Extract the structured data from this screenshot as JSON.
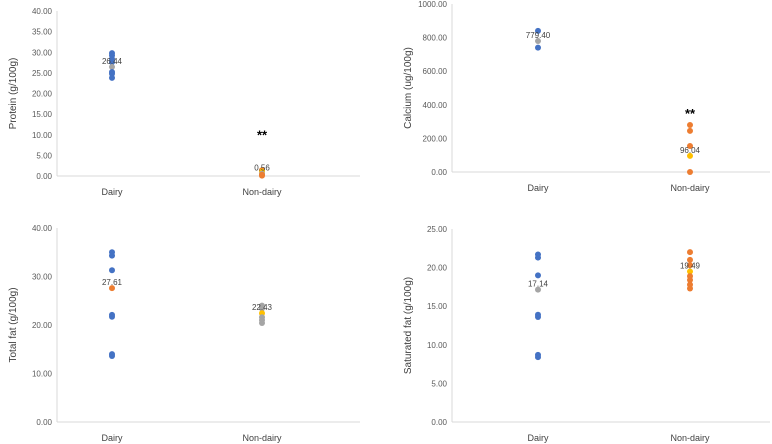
{
  "chart_data": [
    {
      "type": "scatter",
      "ylabel": "Protein (g/100g)",
      "categories": [
        "Dairy",
        "Non-dairy"
      ],
      "yticks": [
        "0.00",
        "5.00",
        "10.00",
        "15.00",
        "20.00",
        "25.00",
        "30.00",
        "35.00",
        "40.00"
      ],
      "ylim": [
        0,
        40
      ],
      "grid": false,
      "series": [
        {
          "category": "Dairy",
          "points": [
            {
              "y": 29.8,
              "color": "#4472c4"
            },
            {
              "y": 29.2,
              "color": "#4472c4"
            },
            {
              "y": 28.4,
              "color": "#4472c4"
            },
            {
              "y": 27.6,
              "color": "#4472c4"
            },
            {
              "y": 26.44,
              "color": "#a5a5a5"
            },
            {
              "y": 25.2,
              "color": "#4472c4"
            },
            {
              "y": 24.8,
              "color": "#4472c4"
            },
            {
              "y": 23.8,
              "color": "#4472c4"
            }
          ]
        },
        {
          "category": "Non-dairy",
          "points": [
            {
              "y": 1.4,
              "color": "#ed7d31"
            },
            {
              "y": 1.1,
              "color": "#ffc000"
            },
            {
              "y": 0.56,
              "color": "#a5a5a5"
            },
            {
              "y": 0.3,
              "color": "#ed7d31"
            },
            {
              "y": 0.1,
              "color": "#ed7d31"
            }
          ]
        }
      ],
      "labels": [
        {
          "category": "Dairy",
          "y": 26.44,
          "text": "26.44"
        },
        {
          "category": "Non-dairy",
          "y": 0.56,
          "text": "0.56"
        }
      ],
      "significance": {
        "category": "Non-dairy",
        "text": "**"
      }
    },
    {
      "type": "scatter",
      "ylabel": "Calcium (ug/100g)",
      "categories": [
        "Dairy",
        "Non-dairy"
      ],
      "yticks": [
        "0.00",
        "200.00",
        "400.00",
        "600.00",
        "800.00",
        "1000.00"
      ],
      "ylim": [
        0,
        1000
      ],
      "grid": false,
      "series": [
        {
          "category": "Dairy",
          "points": [
            {
              "y": 840,
              "color": "#4472c4"
            },
            {
              "y": 779.4,
              "color": "#a5a5a5"
            },
            {
              "y": 740,
              "color": "#4472c4"
            }
          ]
        },
        {
          "category": "Non-dairy",
          "points": [
            {
              "y": 280,
              "color": "#ed7d31"
            },
            {
              "y": 245,
              "color": "#ed7d31"
            },
            {
              "y": 155,
              "color": "#ed7d31"
            },
            {
              "y": 96.04,
              "color": "#ffc000"
            },
            {
              "y": 0,
              "color": "#ed7d31"
            }
          ]
        }
      ],
      "labels": [
        {
          "category": "Dairy",
          "y": 779.4,
          "text": "779.40"
        },
        {
          "category": "Non-dairy",
          "y": 96.04,
          "text": "96.04"
        }
      ],
      "significance": {
        "category": "Non-dairy",
        "text": "**"
      }
    },
    {
      "type": "scatter",
      "ylabel": "Total fat (g/100g)",
      "categories": [
        "Dairy",
        "Non-dairy"
      ],
      "yticks": [
        "0.00",
        "10.00",
        "20.00",
        "30.00",
        "40.00"
      ],
      "ylim": [
        0,
        40
      ],
      "grid": false,
      "series": [
        {
          "category": "Dairy",
          "points": [
            {
              "y": 35.0,
              "color": "#4472c4"
            },
            {
              "y": 34.3,
              "color": "#4472c4"
            },
            {
              "y": 31.3,
              "color": "#4472c4"
            },
            {
              "y": 27.61,
              "color": "#ed7d31"
            },
            {
              "y": 22.1,
              "color": "#4472c4"
            },
            {
              "y": 21.7,
              "color": "#4472c4"
            },
            {
              "y": 14.0,
              "color": "#4472c4"
            },
            {
              "y": 13.6,
              "color": "#4472c4"
            }
          ]
        },
        {
          "category": "Non-dairy",
          "points": [
            {
              "y": 24.0,
              "color": "#a5a5a5"
            },
            {
              "y": 23.4,
              "color": "#a5a5a5"
            },
            {
              "y": 22.43,
              "color": "#ffc000"
            },
            {
              "y": 21.6,
              "color": "#a5a5a5"
            },
            {
              "y": 21.0,
              "color": "#a5a5a5"
            },
            {
              "y": 20.4,
              "color": "#a5a5a5"
            }
          ]
        }
      ],
      "labels": [
        {
          "category": "Dairy",
          "y": 27.61,
          "text": "27.61"
        },
        {
          "category": "Non-dairy",
          "y": 22.43,
          "text": "22.43"
        }
      ]
    },
    {
      "type": "scatter",
      "ylabel": "Saturated fat (g/100g)",
      "categories": [
        "Dairy",
        "Non-dairy"
      ],
      "yticks": [
        "0.00",
        "5.00",
        "10.00",
        "15.00",
        "20.00",
        "25.00"
      ],
      "ylim": [
        0,
        25
      ],
      "grid": false,
      "series": [
        {
          "category": "Dairy",
          "points": [
            {
              "y": 21.7,
              "color": "#4472c4"
            },
            {
              "y": 21.3,
              "color": "#4472c4"
            },
            {
              "y": 19.0,
              "color": "#4472c4"
            },
            {
              "y": 17.14,
              "color": "#a5a5a5"
            },
            {
              "y": 13.9,
              "color": "#4472c4"
            },
            {
              "y": 13.6,
              "color": "#4472c4"
            },
            {
              "y": 8.7,
              "color": "#4472c4"
            },
            {
              "y": 8.4,
              "color": "#4472c4"
            }
          ]
        },
        {
          "category": "Non-dairy",
          "points": [
            {
              "y": 22.0,
              "color": "#ed7d31"
            },
            {
              "y": 21.0,
              "color": "#ed7d31"
            },
            {
              "y": 20.3,
              "color": "#ed7d31"
            },
            {
              "y": 19.49,
              "color": "#ffc000"
            },
            {
              "y": 18.9,
              "color": "#ed7d31"
            },
            {
              "y": 18.4,
              "color": "#ed7d31"
            },
            {
              "y": 17.8,
              "color": "#ed7d31"
            },
            {
              "y": 17.3,
              "color": "#ed7d31"
            }
          ]
        }
      ],
      "labels": [
        {
          "category": "Dairy",
          "y": 17.14,
          "text": "17.14"
        },
        {
          "category": "Non-dairy",
          "y": 19.49,
          "text": "19.49"
        }
      ]
    }
  ]
}
